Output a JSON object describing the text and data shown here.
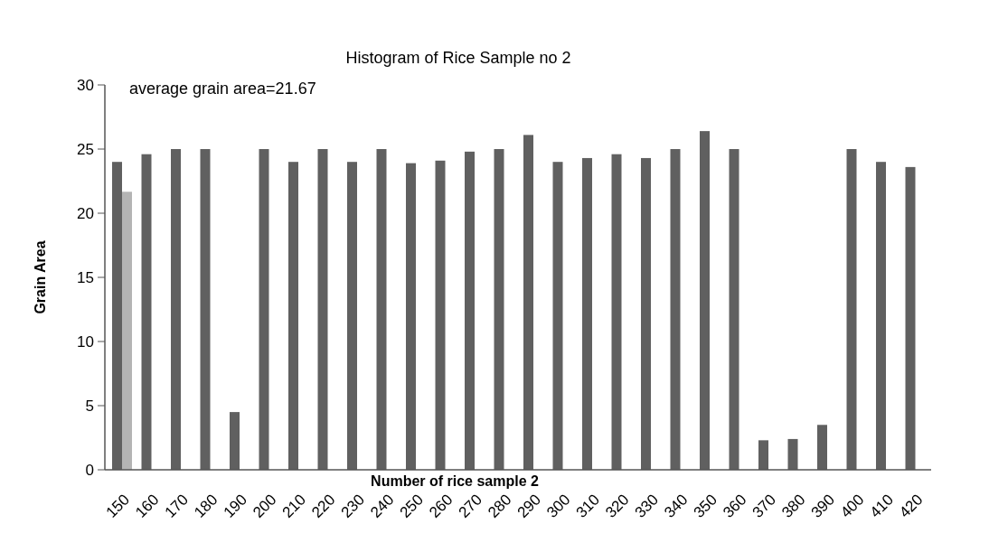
{
  "chart_data": {
    "type": "bar",
    "title": "Histogram of Rice Sample no 2",
    "xlabel": "Number of rice sample 2",
    "ylabel": "Grain Area",
    "annotations": [
      "average grain area=21.67"
    ],
    "categories": [
      "150",
      "160",
      "170",
      "180",
      "190",
      "200",
      "210",
      "220",
      "230",
      "240",
      "250",
      "260",
      "270",
      "280",
      "290",
      "300",
      "310",
      "320",
      "330",
      "340",
      "350",
      "360",
      "370",
      "380",
      "390",
      "400",
      "410",
      "420"
    ],
    "series": [
      {
        "color": "#606060",
        "values": [
          24.0,
          24.6,
          25,
          25,
          4.5,
          25,
          24,
          25,
          24,
          25,
          23.9,
          24.1,
          24.8,
          25,
          26.1,
          24,
          24.3,
          24.6,
          24.3,
          25,
          26.4,
          25,
          2.3,
          2.4,
          3.5,
          25,
          24,
          23.6
        ]
      },
      {
        "color": "#b4b4b4",
        "values": [
          21.67,
          null,
          null,
          null,
          null,
          null,
          null,
          null,
          null,
          null,
          null,
          null,
          null,
          null,
          null,
          null,
          null,
          null,
          null,
          null,
          null,
          null,
          null,
          null,
          null,
          null,
          null,
          null
        ]
      }
    ],
    "ylim": [
      0,
      30
    ],
    "yticks": [
      0,
      5,
      10,
      15,
      20,
      25,
      30
    ],
    "grid": false
  }
}
